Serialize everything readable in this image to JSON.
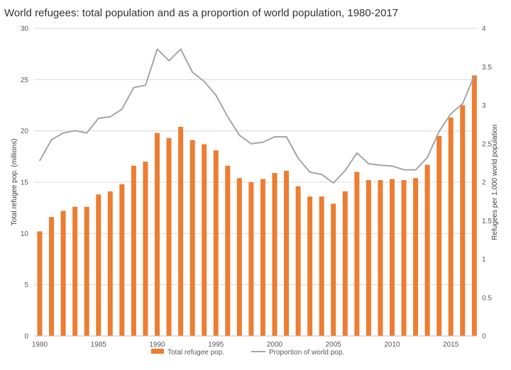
{
  "chart_data": {
    "type": "bar",
    "title": "World refugees: total population and as a proportion of world population, 1980-2017",
    "ylabel": "Total refugee pop. (millions)",
    "y2label": "Refugees per 1,000 world population",
    "ylim": [
      0,
      30
    ],
    "y2lim": [
      0,
      4
    ],
    "y_ticks": [
      0,
      5,
      10,
      15,
      20,
      25,
      30
    ],
    "y2_ticks": [
      "0",
      "0.5",
      "1",
      "1.5",
      "2",
      "2.5",
      "3",
      "3.5",
      "4"
    ],
    "x_tick_labels": [
      "1980",
      "1985",
      "1990",
      "1995",
      "2000",
      "2005",
      "2010",
      "2015"
    ],
    "x": [
      1980,
      1981,
      1982,
      1983,
      1984,
      1985,
      1986,
      1987,
      1988,
      1989,
      1990,
      1991,
      1992,
      1993,
      1994,
      1995,
      1996,
      1997,
      1998,
      1999,
      2000,
      2001,
      2002,
      2003,
      2004,
      2005,
      2006,
      2007,
      2008,
      2009,
      2010,
      2011,
      2012,
      2013,
      2014,
      2015,
      2016,
      2017
    ],
    "series": [
      {
        "name": "Total refugee pop.",
        "kind": "bar",
        "axis": "left",
        "color": "#ED7D31",
        "values": [
          10.2,
          11.6,
          12.2,
          12.6,
          12.6,
          13.8,
          14.1,
          14.8,
          16.6,
          17.0,
          19.8,
          19.3,
          20.4,
          19.1,
          18.7,
          18.1,
          16.6,
          15.4,
          15.0,
          15.3,
          15.9,
          16.1,
          14.6,
          13.6,
          13.6,
          12.9,
          14.1,
          16.0,
          15.2,
          15.2,
          15.3,
          15.2,
          15.4,
          16.7,
          19.5,
          21.3,
          22.5,
          25.4
        ]
      },
      {
        "name": "Proportion of world pop.",
        "kind": "line",
        "axis": "right",
        "color": "#A5A5A5",
        "values": [
          2.28,
          2.55,
          2.64,
          2.67,
          2.64,
          2.83,
          2.85,
          2.95,
          3.23,
          3.26,
          3.73,
          3.58,
          3.73,
          3.43,
          3.31,
          3.13,
          2.85,
          2.61,
          2.5,
          2.52,
          2.59,
          2.59,
          2.31,
          2.13,
          2.1,
          1.99,
          2.15,
          2.38,
          2.24,
          2.22,
          2.21,
          2.16,
          2.16,
          2.32,
          2.66,
          2.89,
          3.02,
          3.39
        ]
      }
    ],
    "legend_position": "bottom"
  }
}
